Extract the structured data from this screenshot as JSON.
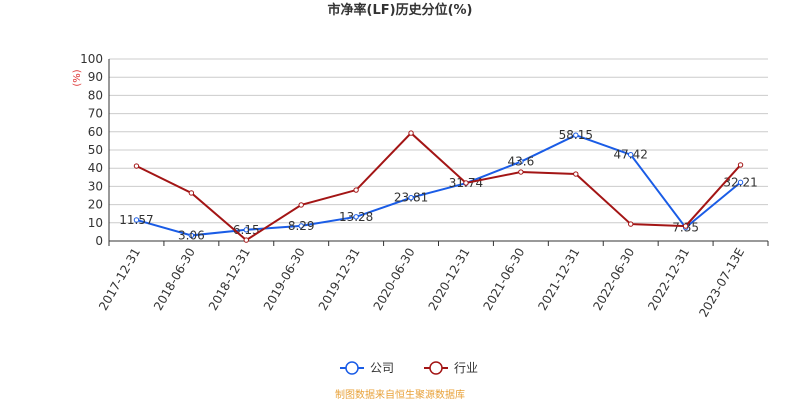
{
  "chart_data": {
    "type": "line",
    "title": "市净率(LF)历史分位(%)",
    "y_label": "(%)",
    "categories": [
      "2017-12-31",
      "2018-06-30",
      "2018-12-31",
      "2019-06-30",
      "2019-12-31",
      "2020-06-30",
      "2020-12-31",
      "2021-06-30",
      "2021-12-31",
      "2022-06-30",
      "2022-12-31",
      "2023-07-13E"
    ],
    "series": [
      {
        "name": "公司",
        "color": "#1a5ce6",
        "values": [
          11.57,
          3.06,
          6.15,
          8.29,
          13.28,
          23.81,
          31.74,
          43.6,
          58.15,
          47.42,
          7.35,
          32.21
        ],
        "show_labels": true
      },
      {
        "name": "行业",
        "color": "#a31515",
        "values": [
          41.2,
          26.4,
          0.5,
          19.8,
          28,
          59.3,
          31.9,
          37.9,
          36.8,
          9.3,
          8.2,
          41.8
        ],
        "show_labels": false
      }
    ],
    "ylim": [
      0,
      100
    ],
    "yticks": [
      0,
      10,
      20,
      30,
      40,
      50,
      60,
      70,
      80,
      90,
      100
    ],
    "grid": true,
    "footer": "制图数据来自恒生聚源数据库"
  }
}
